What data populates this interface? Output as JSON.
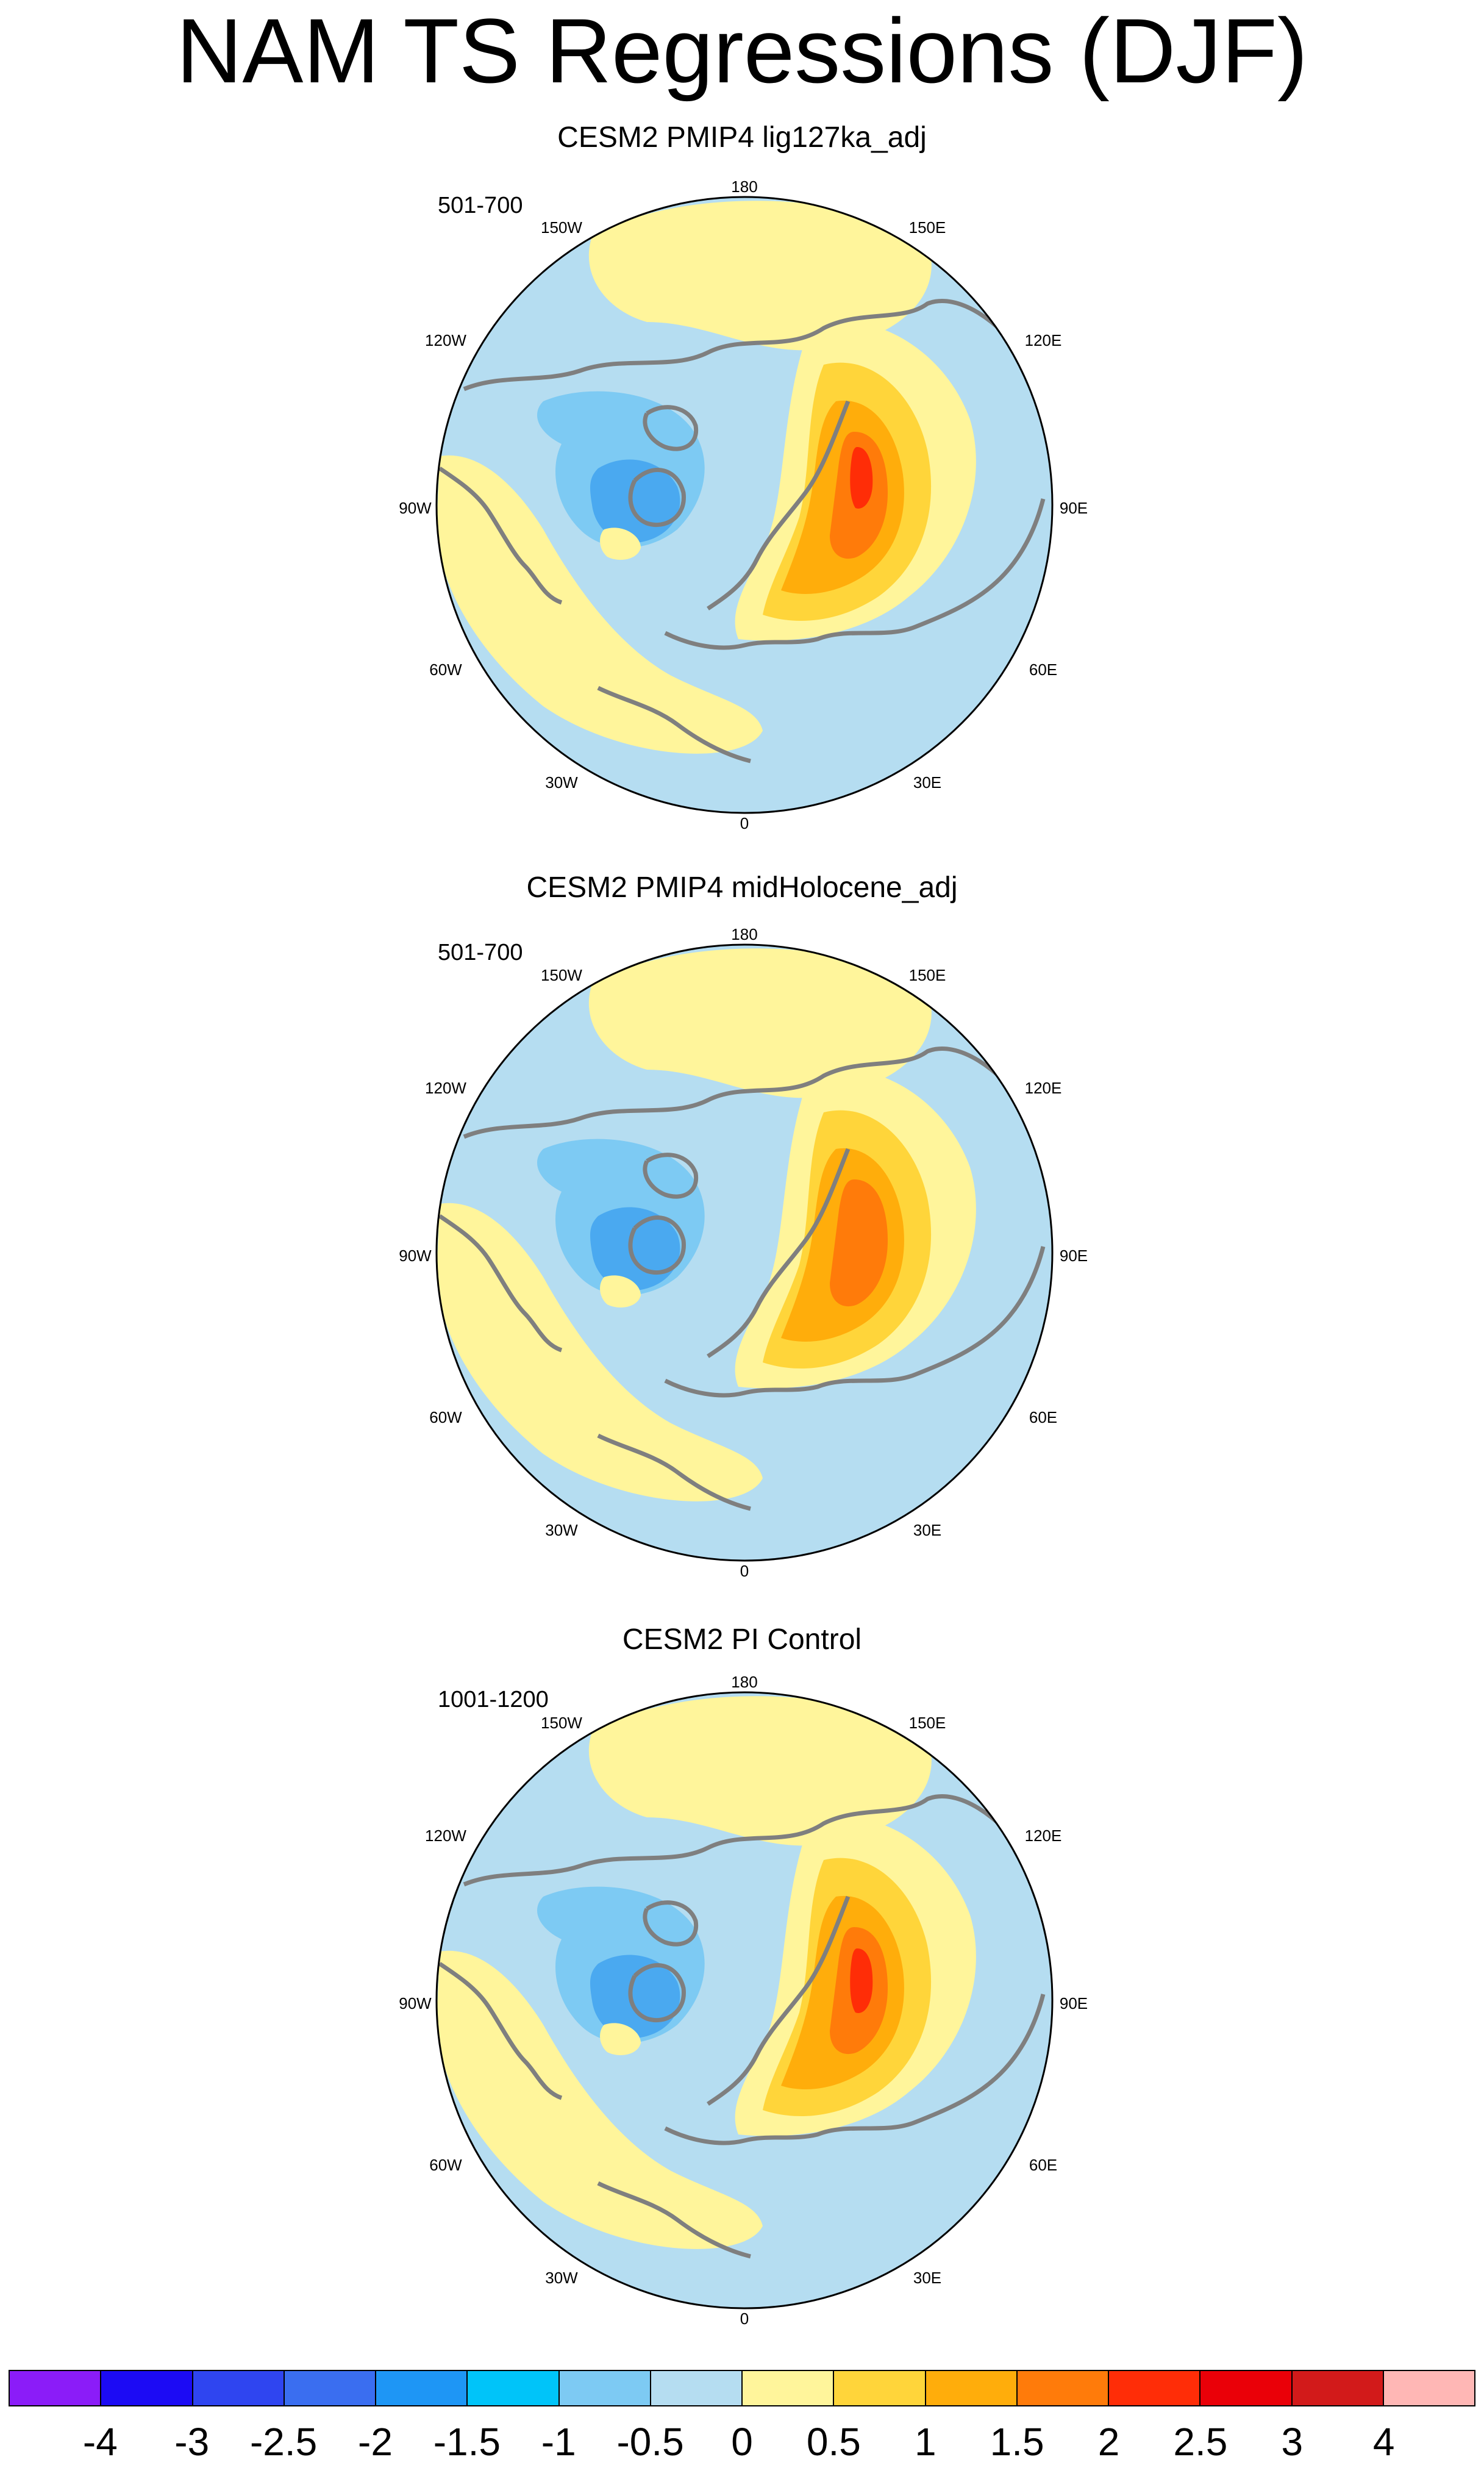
{
  "title": "NAM TS Regressions (DJF)",
  "lon_labels": [
    "180",
    "150E",
    "120E",
    "90E",
    "60E",
    "30E",
    "0",
    "30W",
    "60W",
    "90W",
    "120W",
    "150W"
  ],
  "panels": [
    {
      "title": "CESM2 PMIP4 lig127ka_adj",
      "years": "501-700"
    },
    {
      "title": "CESM2 PMIP4 midHolocene_adj",
      "years": "501-700"
    },
    {
      "title": "CESM2 PI Control",
      "years": "1001-1200"
    }
  ],
  "colorbar": {
    "colors": [
      "#8b1cf8",
      "#1c0bf4",
      "#2f45f0",
      "#3a6ef0",
      "#1e96f5",
      "#00c4f9",
      "#7dcaf3",
      "#b5ddf1",
      "#fff59b",
      "#ffd53a",
      "#ffad0b",
      "#ff7b0a",
      "#ff2d07",
      "#ea0008",
      "#d21a1a",
      "#ffb7b5"
    ],
    "labels": [
      "-4",
      "-3",
      "-2.5",
      "-2",
      "-1.5",
      "-1",
      "-0.5",
      "0",
      "0.5",
      "1",
      "1.5",
      "2",
      "2.5",
      "3",
      "4"
    ]
  },
  "map_colors": {
    "ocean_neg": "#b5ddf1",
    "pos_light": "#fff59b",
    "pos_mid": "#ffd53a",
    "pos_strong": "#ffad0b",
    "pos_stronger": "#ff7b0a",
    "pos_peak": "#ff2d07",
    "neg_mid": "#7dcaf3",
    "neg_strong": "#4aa9f0",
    "coast": "#7f7f7f"
  }
}
